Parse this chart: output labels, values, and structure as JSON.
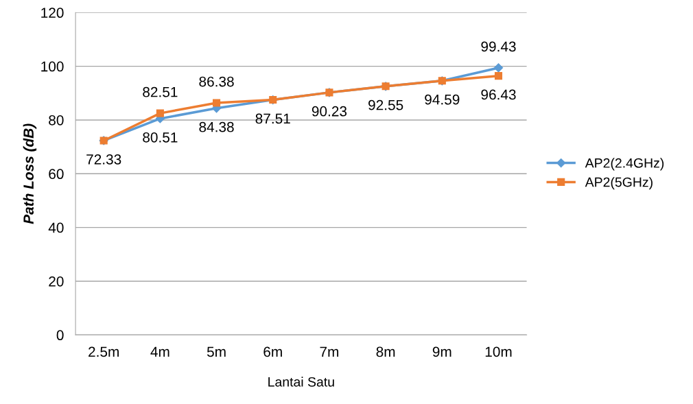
{
  "chart_data": {
    "type": "line",
    "xlabel": "Lantai Satu",
    "ylabel": "Path Loss (dB)",
    "categories": [
      "2.5m",
      "4m",
      "5m",
      "6m",
      "7m",
      "8m",
      "9m",
      "10m"
    ],
    "series": [
      {
        "name": "AP2(2.4GHz)",
        "color": "#5b9bd5",
        "marker": "diamond",
        "values": [
          72.33,
          80.51,
          84.38,
          87.51,
          90.23,
          92.55,
          94.59,
          99.43
        ],
        "value_labels": [
          "72.33",
          "80.51",
          "84.38",
          null,
          null,
          null,
          "94.59",
          "99.43"
        ]
      },
      {
        "name": "AP2(5GHz)",
        "color": "#ed7d31",
        "marker": "square",
        "values": [
          72.33,
          82.51,
          86.38,
          87.51,
          90.23,
          92.55,
          94.59,
          96.43
        ],
        "value_labels": [
          null,
          "82.51",
          "86.38",
          "87.51",
          "90.23",
          "92.55",
          null,
          "96.43"
        ]
      }
    ],
    "ylim": [
      0,
      120
    ],
    "yticks": [
      0,
      20,
      40,
      60,
      80,
      100,
      120
    ],
    "grid": "y",
    "legend": "right",
    "line_style": "solid"
  }
}
